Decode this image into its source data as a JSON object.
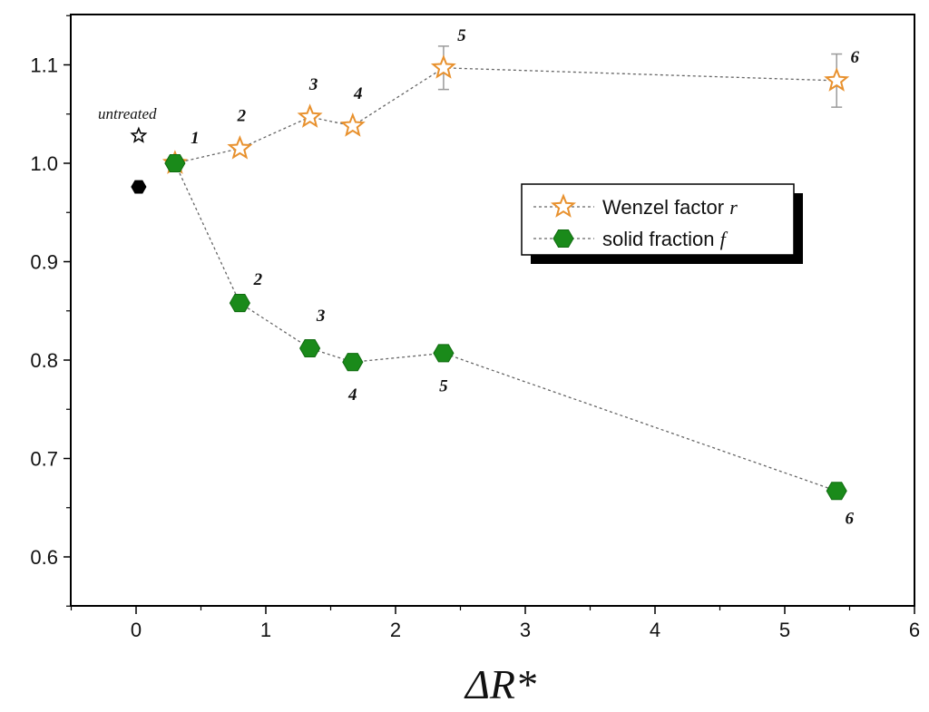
{
  "chart_data": {
    "type": "scatter",
    "title": "",
    "xlabel": "ΔR*",
    "ylabel": "",
    "xlim": [
      -0.5,
      6.0
    ],
    "ylim": [
      0.55,
      1.14
    ],
    "x_ticks": [
      "0",
      "1",
      "2",
      "3",
      "4",
      "5",
      "6"
    ],
    "y_ticks": [
      "0.6",
      "0.7",
      "0.8",
      "0.9",
      "1.0",
      "1.1"
    ],
    "legend": {
      "placement": "right",
      "entries": [
        {
          "label": "Wenzel factor ",
          "symbol": "r",
          "marker": "star",
          "color": "#e8912e"
        },
        {
          "label": "solid fraction ",
          "symbol": "f",
          "marker": "hexagon",
          "color": "#1a8a1a"
        }
      ]
    },
    "series": [
      {
        "name": "Wenzel factor r",
        "marker": "star",
        "color": "#e8912e",
        "line_color": "#666666",
        "points": [
          {
            "x": 0.3,
            "y": 1.0,
            "label": "1"
          },
          {
            "x": 0.8,
            "y": 1.015,
            "label": "2"
          },
          {
            "x": 1.34,
            "y": 1.047,
            "label": "3"
          },
          {
            "x": 1.67,
            "y": 1.038,
            "label": "4"
          },
          {
            "x": 2.37,
            "y": 1.097,
            "label": "5",
            "err": 0.022
          },
          {
            "x": 5.4,
            "y": 1.084,
            "label": "6",
            "err": 0.027
          }
        ]
      },
      {
        "name": "solid fraction f",
        "marker": "hexagon",
        "color": "#1a8a1a",
        "line_color": "#666666",
        "points": [
          {
            "x": 0.3,
            "y": 1.0,
            "label": "1"
          },
          {
            "x": 0.8,
            "y": 0.858,
            "label": "2"
          },
          {
            "x": 1.34,
            "y": 0.812,
            "label": "3"
          },
          {
            "x": 1.67,
            "y": 0.798,
            "label": "4"
          },
          {
            "x": 2.37,
            "y": 0.807,
            "label": "5"
          },
          {
            "x": 5.4,
            "y": 0.667,
            "label": "6"
          }
        ]
      }
    ],
    "untreated": {
      "label": "untreated",
      "star": {
        "x": 0.02,
        "y": 1.028
      },
      "hexagon": {
        "x": 0.02,
        "y": 0.976
      }
    }
  }
}
